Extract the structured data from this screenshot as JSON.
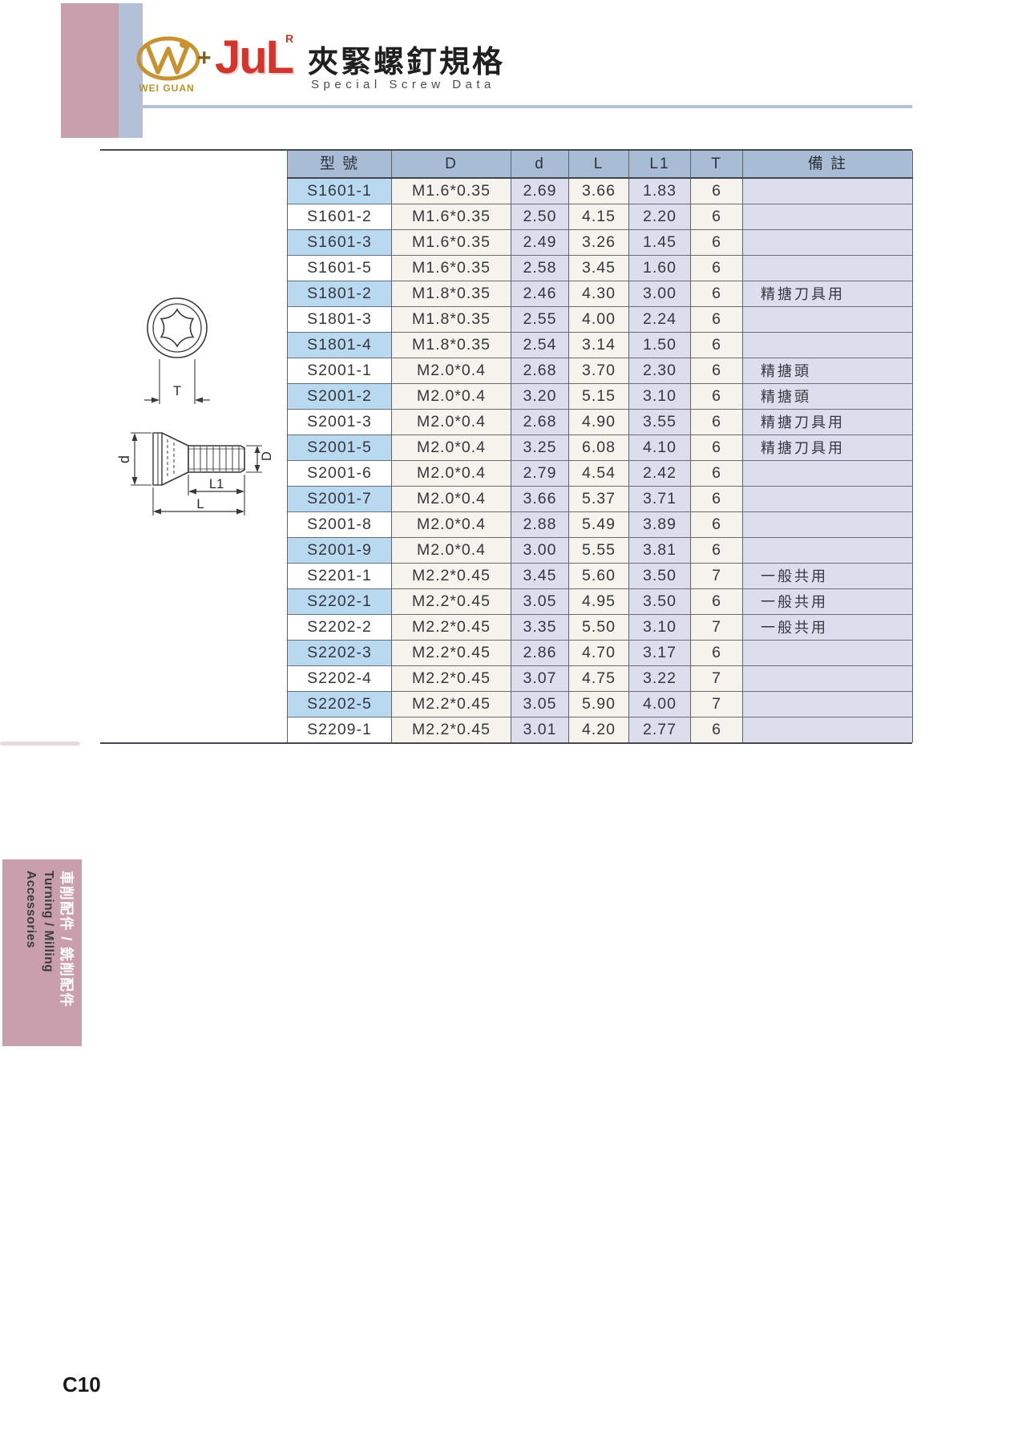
{
  "header": {
    "brand_left": "WEI GUAN",
    "plus": "+",
    "brand_right": "JuL",
    "registered": "R",
    "title_zh": "夾緊螺釘規格",
    "subtitle_en": "Special Screw Data"
  },
  "diagram": {
    "dim_t": "T",
    "dim_d_head": "d",
    "dim_d_shank": "D",
    "dim_l1": "L1",
    "dim_l": "L"
  },
  "table": {
    "headers": [
      "型 號",
      "D",
      "d",
      "L",
      "L1",
      "T",
      "備 註"
    ],
    "rows": [
      [
        "S1601-1",
        "M1.6*0.35",
        "2.69",
        "3.66",
        "1.83",
        "6",
        ""
      ],
      [
        "S1601-2",
        "M1.6*0.35",
        "2.50",
        "4.15",
        "2.20",
        "6",
        ""
      ],
      [
        "S1601-3",
        "M1.6*0.35",
        "2.49",
        "3.26",
        "1.45",
        "6",
        ""
      ],
      [
        "S1601-5",
        "M1.6*0.35",
        "2.58",
        "3.45",
        "1.60",
        "6",
        ""
      ],
      [
        "S1801-2",
        "M1.8*0.35",
        "2.46",
        "4.30",
        "3.00",
        "6",
        "精搪刀具用"
      ],
      [
        "S1801-3",
        "M1.8*0.35",
        "2.55",
        "4.00",
        "2.24",
        "6",
        ""
      ],
      [
        "S1801-4",
        "M1.8*0.35",
        "2.54",
        "3.14",
        "1.50",
        "6",
        ""
      ],
      [
        "S2001-1",
        "M2.0*0.4",
        "2.68",
        "3.70",
        "2.30",
        "6",
        "精搪頭"
      ],
      [
        "S2001-2",
        "M2.0*0.4",
        "3.20",
        "5.15",
        "3.10",
        "6",
        "精搪頭"
      ],
      [
        "S2001-3",
        "M2.0*0.4",
        "2.68",
        "4.90",
        "3.55",
        "6",
        "精搪刀具用"
      ],
      [
        "S2001-5",
        "M2.0*0.4",
        "3.25",
        "6.08",
        "4.10",
        "6",
        "精搪刀具用"
      ],
      [
        "S2001-6",
        "M2.0*0.4",
        "2.79",
        "4.54",
        "2.42",
        "6",
        ""
      ],
      [
        "S2001-7",
        "M2.0*0.4",
        "3.66",
        "5.37",
        "3.71",
        "6",
        ""
      ],
      [
        "S2001-8",
        "M2.0*0.4",
        "2.88",
        "5.49",
        "3.89",
        "6",
        ""
      ],
      [
        "S2001-9",
        "M2.0*0.4",
        "3.00",
        "5.55",
        "3.81",
        "6",
        ""
      ],
      [
        "S2201-1",
        "M2.2*0.45",
        "3.45",
        "5.60",
        "3.50",
        "7",
        "一般共用"
      ],
      [
        "S2202-1",
        "M2.2*0.45",
        "3.05",
        "4.95",
        "3.50",
        "6",
        "一般共用"
      ],
      [
        "S2202-2",
        "M2.2*0.45",
        "3.35",
        "5.50",
        "3.10",
        "7",
        "一般共用"
      ],
      [
        "S2202-3",
        "M2.2*0.45",
        "2.86",
        "4.70",
        "3.17",
        "6",
        ""
      ],
      [
        "S2202-4",
        "M2.2*0.45",
        "3.07",
        "4.75",
        "3.22",
        "7",
        ""
      ],
      [
        "S2202-5",
        "M2.2*0.45",
        "3.05",
        "5.90",
        "4.00",
        "7",
        ""
      ],
      [
        "S2209-1",
        "M2.2*0.45",
        "3.01",
        "4.20",
        "2.77",
        "6",
        ""
      ]
    ]
  },
  "sidebar": {
    "zh": "車削配件 / 銑削配件",
    "en_line1": "Turning / Milling",
    "en_line2": "Accessories"
  },
  "footer": {
    "page_number": "C10"
  },
  "colors": {
    "pink_block": "#c99fad",
    "blue_strip": "#b2c0d8",
    "table_header_bg": "#a9bcd6",
    "model_cell_blue": "#b9d9f1",
    "lavender_cell": "#dcdeee",
    "cream_cell": "#f5f3ec",
    "logo_red": "#d2352b",
    "logo_gold": "#c08b2d"
  }
}
